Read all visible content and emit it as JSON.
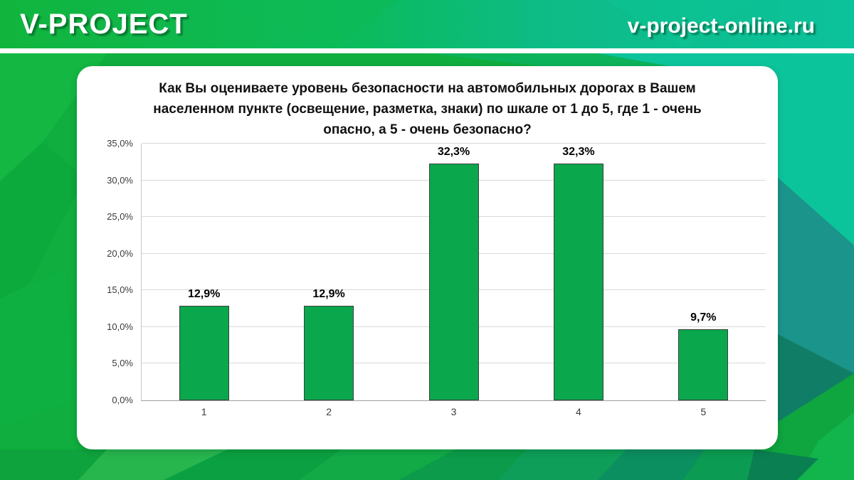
{
  "header": {
    "logo_text": "V-PROJECT",
    "website_url": "v-project-online.ru"
  },
  "colors": {
    "bar_fill": "#0BA74D",
    "bar_border": "#3E3E3E",
    "gridline": "#D9D9D9",
    "axis_line": "#9E9E9E",
    "plot_border": "#C8C8C8",
    "header_green": "#11B53D",
    "header_teal": "#0CC29C",
    "card_background": "#FFFFFF"
  },
  "chart_data": {
    "type": "bar",
    "title": "Как Вы оцениваете уровень безопасности на автомобильных дорогах в Вашем населенном пункте (освещение, разметка, знаки) по шкале от 1 до 5, где 1 - очень опасно, а 5 - очень безопасно?",
    "categories": [
      "1",
      "2",
      "3",
      "4",
      "5"
    ],
    "values": [
      12.9,
      12.9,
      32.3,
      32.3,
      9.7
    ],
    "value_labels": [
      "12,9%",
      "12,9%",
      "32,3%",
      "32,3%",
      "9,7%"
    ],
    "xlabel": "",
    "ylabel": "",
    "ylim": [
      0,
      35
    ],
    "ytick_step": 5,
    "ytick_labels": [
      "0,0%",
      "5,0%",
      "10,0%",
      "15,0%",
      "20,0%",
      "25,0%",
      "30,0%",
      "35,0%"
    ],
    "grid": true,
    "legend": "none"
  }
}
